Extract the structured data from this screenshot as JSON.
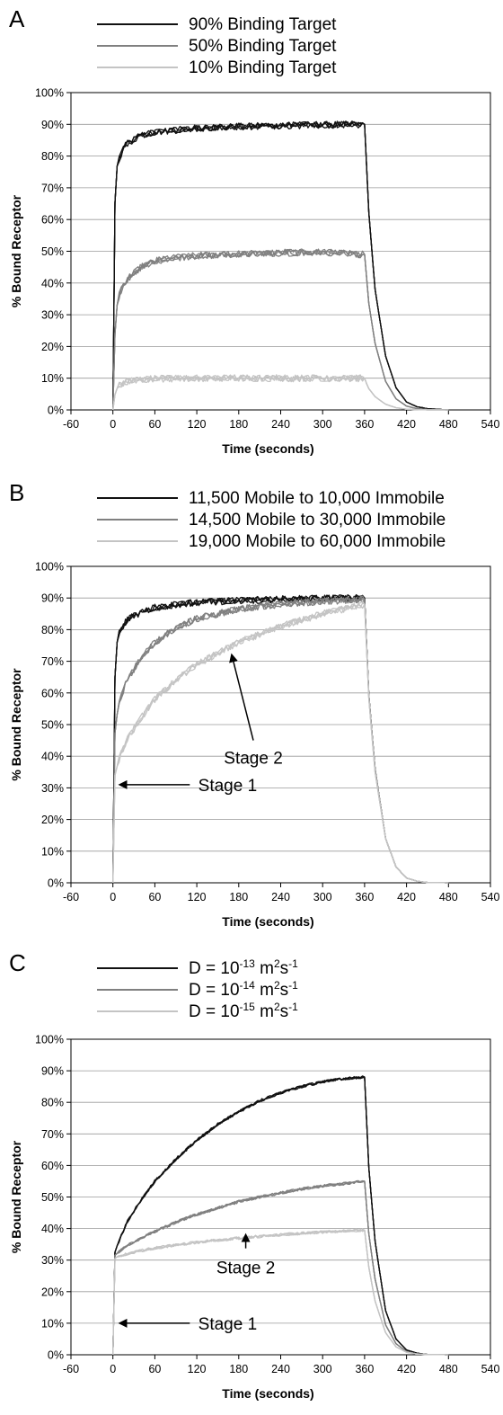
{
  "chart_data": [
    {
      "panel": "A",
      "type": "line",
      "xlabel": "Time (seconds)",
      "ylabel": "% Bound Receptor",
      "xlim": [
        -60,
        540
      ],
      "ylim": [
        0,
        100
      ],
      "xticks": [
        "-60",
        "0",
        "60",
        "120",
        "180",
        "240",
        "300",
        "360",
        "420",
        "480",
        "540"
      ],
      "yticks": [
        "0%",
        "10%",
        "20%",
        "30%",
        "40%",
        "50%",
        "60%",
        "70%",
        "80%",
        "90%",
        "100%"
      ],
      "grid": "horizontal",
      "legend": "top",
      "series": [
        {
          "name": "90% Binding Target",
          "color": "#111111",
          "x": [
            0,
            2,
            5,
            10,
            20,
            40,
            60,
            90,
            120,
            180,
            240,
            300,
            360,
            361,
            365,
            375,
            390,
            405,
            420,
            435,
            450,
            480
          ],
          "values": [
            0,
            60,
            76,
            80,
            84,
            86.5,
            87.5,
            88.2,
            88.8,
            89.3,
            89.6,
            89.8,
            90,
            88,
            65,
            38,
            17,
            7,
            2.5,
            1,
            0.4,
            0
          ]
        },
        {
          "name": "50% Binding Target",
          "color": "#808080",
          "x": [
            0,
            2,
            5,
            10,
            20,
            40,
            60,
            90,
            120,
            180,
            240,
            300,
            360,
            361,
            365,
            375,
            390,
            405,
            420,
            435,
            450,
            480
          ],
          "values": [
            0,
            20,
            32,
            37,
            41,
            45,
            47,
            48,
            48.6,
            49.2,
            49.5,
            49.7,
            49,
            48,
            35,
            21,
            9,
            3.5,
            1.2,
            0.4,
            0.1,
            0
          ]
        },
        {
          "name": "10% Binding Target",
          "color": "#c4c4c4",
          "x": [
            0,
            2,
            5,
            10,
            20,
            40,
            60,
            90,
            120,
            180,
            240,
            300,
            360,
            361,
            365,
            375,
            390,
            405,
            420,
            435,
            450,
            480
          ],
          "values": [
            0,
            4,
            6.5,
            8,
            9,
            9.6,
            9.8,
            9.9,
            10,
            10,
            10,
            10,
            10,
            9.5,
            7,
            4.2,
            1.8,
            0.7,
            0.2,
            0.1,
            0,
            0
          ]
        }
      ]
    },
    {
      "panel": "B",
      "type": "line",
      "xlabel": "Time (seconds)",
      "ylabel": "% Bound Receptor",
      "xlim": [
        -60,
        540
      ],
      "ylim": [
        0,
        100
      ],
      "xticks": [
        "-60",
        "0",
        "60",
        "120",
        "180",
        "240",
        "300",
        "360",
        "420",
        "480",
        "540"
      ],
      "yticks": [
        "0%",
        "10%",
        "20%",
        "30%",
        "40%",
        "50%",
        "60%",
        "70%",
        "80%",
        "90%",
        "100%"
      ],
      "grid": "horizontal",
      "legend": "top",
      "annotations": [
        {
          "text": "Stage 2",
          "arrow_to": [
            170,
            72
          ]
        },
        {
          "text": "Stage 1",
          "arrow_to": [
            10,
            31
          ]
        }
      ],
      "series": [
        {
          "name": "11,500 Mobile to 10,000 Immobile",
          "color": "#111111",
          "x": [
            0,
            2,
            5,
            10,
            20,
            40,
            60,
            90,
            120,
            180,
            240,
            300,
            360,
            361,
            365,
            375,
            390,
            405,
            420,
            435,
            450,
            480
          ],
          "values": [
            0,
            60,
            75,
            80,
            83,
            85.5,
            87,
            88,
            88.6,
            89.2,
            89.6,
            89.9,
            90,
            88,
            62,
            36,
            14,
            5,
            1.5,
            0.5,
            0.1,
            0
          ]
        },
        {
          "name": "14,500 Mobile to 30,000 Immobile",
          "color": "#808080",
          "x": [
            0,
            2,
            5,
            10,
            20,
            40,
            60,
            90,
            120,
            180,
            240,
            300,
            360,
            361,
            365,
            375,
            390,
            405,
            420,
            435,
            450,
            480
          ],
          "values": [
            0,
            45,
            52,
            58,
            64,
            71,
            76,
            80.5,
            83.5,
            86.5,
            88,
            89,
            89.5,
            87.5,
            62,
            36,
            14,
            5,
            1.5,
            0.5,
            0.1,
            0
          ]
        },
        {
          "name": "19,000 Mobile to 60,000 Immobile",
          "color": "#c4c4c4",
          "x": [
            0,
            2,
            5,
            10,
            20,
            40,
            60,
            90,
            120,
            180,
            240,
            300,
            360,
            361,
            365,
            375,
            390,
            405,
            420,
            435,
            450,
            480
          ],
          "values": [
            0,
            33,
            36,
            40,
            45,
            52,
            58,
            64,
            69,
            76,
            81,
            85,
            88,
            86.5,
            61,
            35,
            14,
            5,
            1.5,
            0.5,
            0.1,
            0
          ]
        }
      ]
    },
    {
      "panel": "C",
      "type": "line",
      "xlabel": "Time (seconds)",
      "ylabel": "% Bound Receptor",
      "xlim": [
        -60,
        540
      ],
      "ylim": [
        0,
        100
      ],
      "xticks": [
        "-60",
        "0",
        "60",
        "120",
        "180",
        "240",
        "300",
        "360",
        "420",
        "480",
        "540"
      ],
      "yticks": [
        "0%",
        "10%",
        "20%",
        "30%",
        "40%",
        "50%",
        "60%",
        "70%",
        "80%",
        "90%",
        "100%"
      ],
      "grid": "horizontal",
      "legend": "top",
      "annotations": [
        {
          "text": "Stage 2",
          "arrow_to": [
            190,
            38
          ]
        },
        {
          "text": "Stage 1",
          "arrow_to": [
            10,
            10
          ]
        }
      ],
      "series": [
        {
          "name_parts": [
            "D = 10",
            "-13",
            " m",
            "2",
            "s",
            "-1"
          ],
          "color": "#111111",
          "x": [
            0,
            1,
            5,
            20,
            40,
            60,
            90,
            120,
            150,
            180,
            210,
            240,
            270,
            300,
            330,
            360,
            361,
            365,
            375,
            390,
            405,
            420,
            435,
            450,
            480
          ],
          "values": [
            0,
            31,
            34,
            42,
            49,
            55,
            62,
            68,
            73,
            77,
            80.5,
            83,
            85,
            86.5,
            87.5,
            88,
            86,
            62,
            36,
            14,
            5,
            1.5,
            0.5,
            0.1,
            0
          ]
        },
        {
          "name_parts": [
            "D = 10",
            "-14",
            " m",
            "2",
            "s",
            "-1"
          ],
          "color": "#808080",
          "x": [
            0,
            1,
            5,
            20,
            40,
            60,
            90,
            120,
            150,
            180,
            210,
            240,
            270,
            300,
            330,
            360,
            361,
            365,
            375,
            390,
            405,
            420,
            435,
            450,
            480
          ],
          "values": [
            0,
            31,
            32,
            34.5,
            37,
            39,
            42,
            44.5,
            46.5,
            48.5,
            50,
            51.3,
            52.5,
            53.5,
            54.2,
            55,
            53.5,
            40,
            24,
            9.5,
            3.5,
            1,
            0.3,
            0.1,
            0
          ]
        },
        {
          "name_parts": [
            "D = 10",
            "-15",
            " m",
            "2",
            "s",
            "-1"
          ],
          "color": "#c4c4c4",
          "x": [
            0,
            1,
            5,
            20,
            40,
            60,
            90,
            120,
            150,
            180,
            210,
            240,
            270,
            300,
            330,
            360,
            361,
            365,
            375,
            390,
            405,
            420,
            435,
            450,
            480
          ],
          "values": [
            0,
            30,
            31,
            32,
            33,
            33.8,
            34.8,
            35.6,
            36.3,
            37,
            37.5,
            38,
            38.5,
            38.9,
            39.2,
            39.5,
            38.5,
            29,
            17,
            7,
            2.5,
            0.8,
            0.2,
            0.1,
            0
          ]
        }
      ]
    }
  ]
}
